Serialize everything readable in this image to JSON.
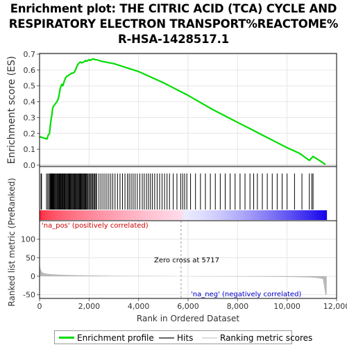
{
  "title_lines": [
    "Enrichment plot: THE CITRIC ACID (TCA) CYCLE AND",
    "RESPIRATORY ELECTRON TRANSPORT%REACTOME%",
    "R-HSA-1428517.1"
  ],
  "colors": {
    "enrichment": "#00dd00",
    "hits": "#000000",
    "metric_fill": "#b8b8b8",
    "pos_label": "#cc0000",
    "neg_label": "#0000cc",
    "zero_line": "#bbbbbb"
  },
  "annotations": {
    "pos_label": "'na_pos' (positively correlated)",
    "neg_label": "'na_neg' (negatively correlated)",
    "zero_cross": "Zero cross at 5717"
  },
  "legend": {
    "enrichment": "Enrichment profile",
    "hits": "Hits",
    "metric": "Ranking metric scores"
  },
  "chart_data": {
    "type": "line",
    "x_max": 11600,
    "zero_cross": 5717,
    "es_panel": {
      "ylabel": "Enrichment score (ES)",
      "ylim": [
        0,
        0.7
      ],
      "yticks": [
        0.0,
        0.1,
        0.2,
        0.3,
        0.4,
        0.5,
        0.6,
        0.7
      ],
      "ytick_labels": [
        "0.0",
        "0.1",
        "0.2",
        "0.3",
        "0.4",
        "0.5",
        "0.6",
        "0.7"
      ],
      "series": [
        {
          "name": "Enrichment profile",
          "x": [
            0,
            300,
            350,
            400,
            450,
            500,
            530,
            560,
            600,
            650,
            700,
            760,
            800,
            830,
            870,
            900,
            940,
            1000,
            1050,
            1100,
            1150,
            1200,
            1260,
            1300,
            1350,
            1400,
            1450,
            1500,
            1550,
            1600,
            1650,
            1700,
            1750,
            1800,
            1850,
            1900,
            1950,
            2000,
            2050,
            2100,
            2150,
            2200,
            2250,
            2300,
            2500,
            3000,
            3500,
            4000,
            4500,
            5000,
            5500,
            6000,
            6500,
            7000,
            7500,
            8000,
            8500,
            9000,
            9500,
            10000,
            10500,
            10900,
            11050,
            11300,
            11550
          ],
          "y": [
            0.18,
            0.165,
            0.19,
            0.2,
            0.27,
            0.32,
            0.36,
            0.37,
            0.38,
            0.39,
            0.4,
            0.42,
            0.45,
            0.48,
            0.5,
            0.51,
            0.5,
            0.53,
            0.55,
            0.56,
            0.565,
            0.57,
            0.575,
            0.58,
            0.58,
            0.585,
            0.6,
            0.62,
            0.635,
            0.645,
            0.65,
            0.645,
            0.648,
            0.652,
            0.66,
            0.655,
            0.66,
            0.665,
            0.66,
            0.665,
            0.67,
            0.668,
            0.665,
            0.665,
            0.655,
            0.64,
            0.615,
            0.59,
            0.555,
            0.52,
            0.48,
            0.44,
            0.395,
            0.35,
            0.31,
            0.27,
            0.23,
            0.19,
            0.15,
            0.11,
            0.075,
            0.03,
            0.055,
            0.03,
            0.005
          ]
        }
      ]
    },
    "hits": [
      60,
      80,
      280,
      330,
      380,
      420,
      440,
      460,
      480,
      500,
      520,
      545,
      565,
      590,
      620,
      650,
      680,
      710,
      740,
      760,
      790,
      810,
      840,
      860,
      890,
      910,
      940,
      960,
      990,
      1010,
      1040,
      1070,
      1100,
      1130,
      1160,
      1190,
      1220,
      1250,
      1280,
      1310,
      1340,
      1370,
      1400,
      1430,
      1460,
      1490,
      1520,
      1550,
      1580,
      1610,
      1640,
      1670,
      1700,
      1730,
      1760,
      1790,
      1820,
      1850,
      1880,
      1910,
      1950,
      1990,
      2030,
      2070,
      2110,
      2150,
      2190,
      2230,
      2270,
      2310,
      2400,
      2480,
      2560,
      2640,
      2720,
      2800,
      2880,
      2960,
      3050,
      3150,
      3250,
      3350,
      3450,
      3550,
      3620,
      3700,
      3780,
      3860,
      3950,
      4050,
      4150,
      4230,
      4320,
      4400,
      4480,
      4560,
      4650,
      4750,
      4850,
      4950,
      5050,
      5150,
      5250,
      5400,
      5550,
      5700,
      5780,
      5860,
      5950,
      6100,
      6300,
      6500,
      6700,
      6900,
      7100,
      7300,
      7500,
      7700,
      7900,
      8100,
      8300,
      8500,
      8650,
      8800,
      9000,
      9200,
      9400,
      9600,
      9800,
      10000,
      10300,
      10600,
      10900,
      11000,
      11050
    ],
    "metric_panel": {
      "ylabel": "Ranked list metric (PreRanked)",
      "xlabel": "Rank in Ordered Dataset",
      "ylim": [
        -60,
        150
      ],
      "yticks": [
        -50,
        0,
        50,
        100
      ],
      "ytick_labels": [
        "-50",
        "0",
        "50",
        "100"
      ],
      "xticks": [
        0,
        2000,
        4000,
        6000,
        8000,
        10000,
        12000
      ],
      "xtick_labels": [
        "0",
        "2,000",
        "4,000",
        "6,000",
        "8,000",
        "10,000",
        "12,000"
      ],
      "x": [
        0,
        20,
        60,
        120,
        250,
        500,
        1000,
        2000,
        3000,
        4000,
        5000,
        5717,
        6500,
        7500,
        8500,
        9500,
        10200,
        10700,
        11000,
        11200,
        11350,
        11450,
        11550,
        11600
      ],
      "y": [
        42,
        25,
        15,
        10,
        7,
        5,
        3.5,
        2,
        1.2,
        0.7,
        0.3,
        0,
        -0.3,
        -0.7,
        -1.1,
        -1.6,
        -2.1,
        -2.8,
        -3.6,
        -4.6,
        -6.0,
        -7.5,
        -50,
        -50
      ]
    }
  }
}
